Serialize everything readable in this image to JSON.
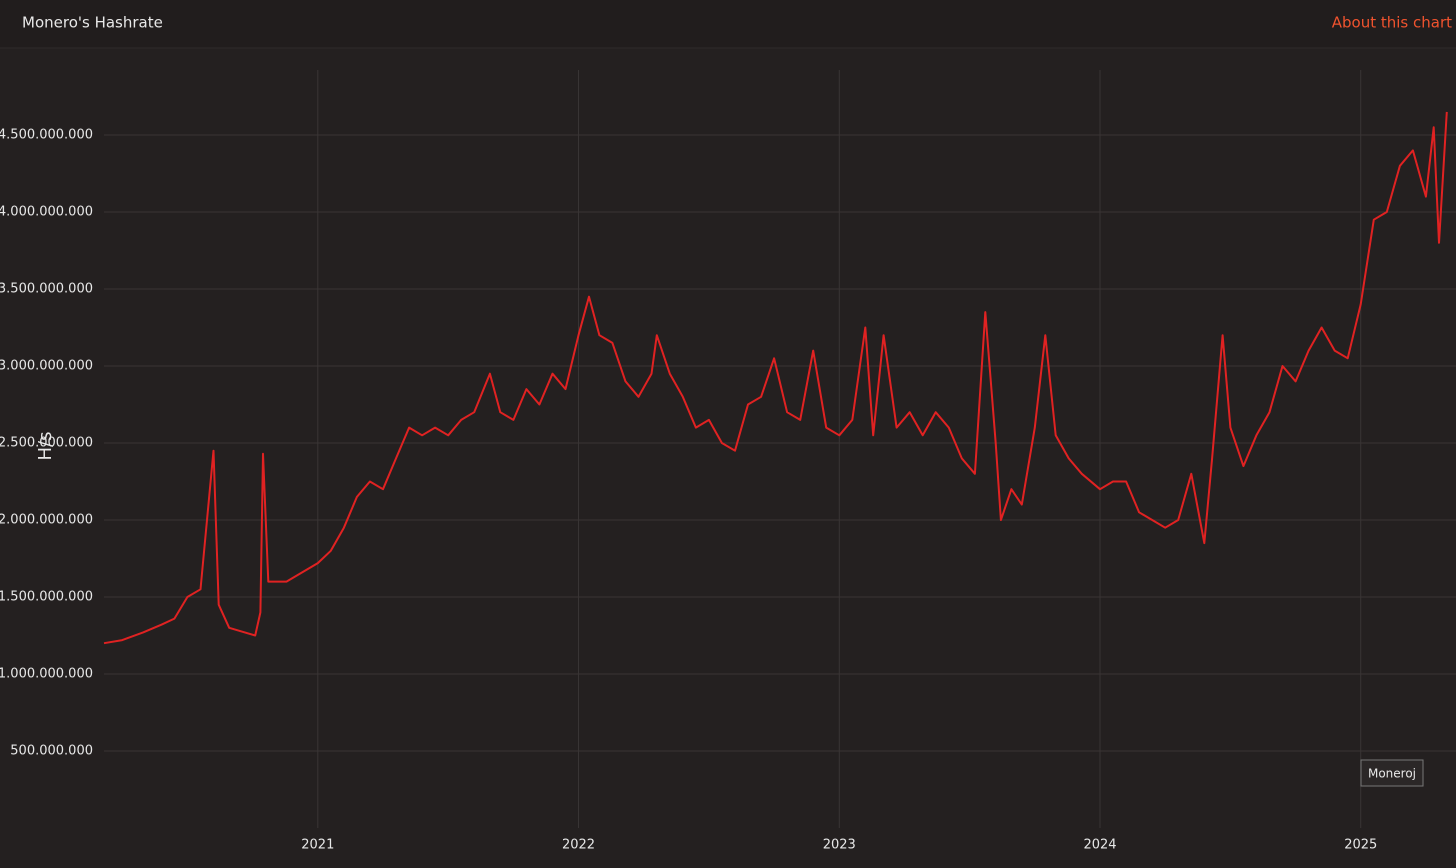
{
  "chart_data": {
    "type": "line",
    "title": "Monero's Hashrate",
    "link": "About this chart",
    "ylabel": "H/s",
    "annotation": "Moneroj",
    "color": "#e02222",
    "grid": true,
    "xlim": [
      2020.18,
      2025.35
    ],
    "xticks": [
      2021,
      2022,
      2023,
      2024,
      2025
    ],
    "ylim": [
      0,
      4900000000
    ],
    "yticks": [
      {
        "value": 500000000,
        "label": "500.000.000"
      },
      {
        "value": 1000000000,
        "label": "1.000.000.000"
      },
      {
        "value": 1500000000,
        "label": "1.500.000.000"
      },
      {
        "value": 2000000000,
        "label": "2.000.000.000"
      },
      {
        "value": 2500000000,
        "label": "2.500.000.000"
      },
      {
        "value": 3000000000,
        "label": "3.000.000.000"
      },
      {
        "value": 3500000000,
        "label": "3.500.000.000"
      },
      {
        "value": 4000000000,
        "label": "4.000.000.000"
      },
      {
        "value": 4500000000,
        "label": "4.500.000.000"
      }
    ],
    "x": [
      2020.18,
      2020.25,
      2020.33,
      2020.4,
      2020.45,
      2020.5,
      2020.55,
      2020.6,
      2020.62,
      2020.66,
      2020.72,
      2020.76,
      2020.78,
      2020.79,
      2020.81,
      2020.88,
      2020.93,
      2021.0,
      2021.05,
      2021.1,
      2021.15,
      2021.2,
      2021.25,
      2021.3,
      2021.35,
      2021.4,
      2021.45,
      2021.5,
      2021.55,
      2021.6,
      2021.66,
      2021.7,
      2021.75,
      2021.8,
      2021.85,
      2021.9,
      2021.95,
      2022.0,
      2022.04,
      2022.08,
      2022.13,
      2022.18,
      2022.23,
      2022.28,
      2022.3,
      2022.35,
      2022.4,
      2022.45,
      2022.5,
      2022.55,
      2022.6,
      2022.65,
      2022.7,
      2022.75,
      2022.8,
      2022.85,
      2022.9,
      2022.95,
      2023.0,
      2023.05,
      2023.1,
      2023.13,
      2023.17,
      2023.22,
      2023.27,
      2023.32,
      2023.37,
      2023.42,
      2023.47,
      2023.52,
      2023.56,
      2023.6,
      2023.62,
      2023.66,
      2023.7,
      2023.75,
      2023.79,
      2023.83,
      2023.88,
      2023.93,
      2024.0,
      2024.05,
      2024.1,
      2024.15,
      2024.2,
      2024.25,
      2024.3,
      2024.35,
      2024.4,
      2024.43,
      2024.47,
      2024.5,
      2024.55,
      2024.6,
      2024.65,
      2024.7,
      2024.75,
      2024.8,
      2024.85,
      2024.9,
      2024.95,
      2025.0,
      2025.05,
      2025.1,
      2025.15,
      2025.2,
      2025.25,
      2025.28,
      2025.3,
      2025.33
    ],
    "values": [
      1200000000,
      1220000000,
      1270000000,
      1320000000,
      1360000000,
      1500000000,
      1550000000,
      2450000000,
      1450000000,
      1300000000,
      1270000000,
      1250000000,
      1400000000,
      2430000000,
      1600000000,
      1600000000,
      1650000000,
      1720000000,
      1800000000,
      1950000000,
      2150000000,
      2250000000,
      2200000000,
      2400000000,
      2600000000,
      2550000000,
      2600000000,
      2550000000,
      2650000000,
      2700000000,
      2950000000,
      2700000000,
      2650000000,
      2850000000,
      2750000000,
      2950000000,
      2850000000,
      3200000000,
      3450000000,
      3200000000,
      3150000000,
      2900000000,
      2800000000,
      2950000000,
      3200000000,
      2950000000,
      2800000000,
      2600000000,
      2650000000,
      2500000000,
      2450000000,
      2750000000,
      2800000000,
      3050000000,
      2700000000,
      2650000000,
      3100000000,
      2600000000,
      2550000000,
      2650000000,
      3250000000,
      2550000000,
      3200000000,
      2600000000,
      2700000000,
      2550000000,
      2700000000,
      2600000000,
      2400000000,
      2300000000,
      3350000000,
      2500000000,
      2000000000,
      2200000000,
      2100000000,
      2600000000,
      3200000000,
      2550000000,
      2400000000,
      2300000000,
      2200000000,
      2250000000,
      2250000000,
      2050000000,
      2000000000,
      1950000000,
      2000000000,
      2300000000,
      1850000000,
      2400000000,
      3200000000,
      2600000000,
      2350000000,
      2550000000,
      2700000000,
      3000000000,
      2900000000,
      3100000000,
      3250000000,
      3100000000,
      3050000000,
      3400000000,
      3950000000,
      4000000000,
      4300000000,
      4400000000,
      4100000000,
      4550000000,
      3800000000,
      4650000000
    ]
  }
}
